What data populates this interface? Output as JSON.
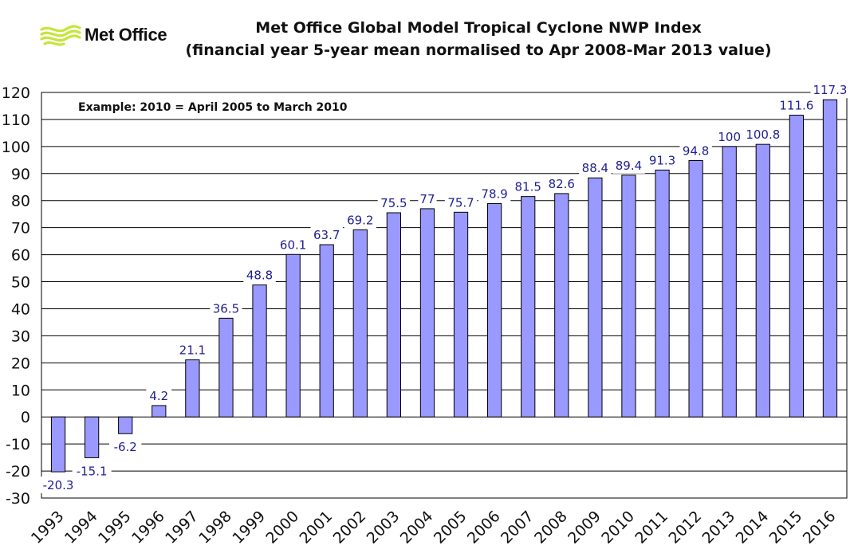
{
  "logo": {
    "text": "Met Office",
    "icon": "met-office-swirl-logo"
  },
  "chart_data": {
    "type": "bar",
    "title": "Met Office Global Model Tropical Cyclone NWP Index",
    "subtitle": "(financial year 5-year mean normalised to Apr 2008-Mar 2013 value)",
    "annotation": "Example: 2010 = April 2005 to March 2010",
    "categories": [
      "1993",
      "1994",
      "1995",
      "1996",
      "1997",
      "1998",
      "1999",
      "2000",
      "2001",
      "2002",
      "2003",
      "2004",
      "2005",
      "2006",
      "2007",
      "2008",
      "2009",
      "2010",
      "2011",
      "2012",
      "2013",
      "2014",
      "2015",
      "2016"
    ],
    "values": [
      -20.3,
      -15.1,
      -6.2,
      4.2,
      21.1,
      36.5,
      48.8,
      60.1,
      63.7,
      69.2,
      75.5,
      77,
      75.7,
      78.9,
      81.5,
      82.6,
      88.4,
      89.4,
      91.3,
      94.8,
      100,
      100.8,
      111.6,
      117.3
    ],
    "data_labels": [
      "-20.3",
      "-15.1",
      "-6.2",
      "4.2",
      "21.1",
      "36.5",
      "48.8",
      "60.1",
      "63.7",
      "69.2",
      "75.5",
      "77",
      "75.7",
      "78.9",
      "81.5",
      "82.6",
      "88.4",
      "89.4",
      "91.3",
      "94.8",
      "100",
      "100.8",
      "111.6",
      "117.3"
    ],
    "ylim": [
      -30,
      120
    ],
    "yticks": [
      "-30",
      "-20",
      "-10",
      "0",
      "10",
      "20",
      "30",
      "40",
      "50",
      "60",
      "70",
      "80",
      "90",
      "100",
      "110",
      "120"
    ],
    "xlabel": "",
    "ylabel": "",
    "grid": true,
    "legend": "none",
    "colors": {
      "bar_fill": "#9999ff",
      "bar_stroke": "#000000",
      "label_color": "#1f1f8f"
    }
  }
}
